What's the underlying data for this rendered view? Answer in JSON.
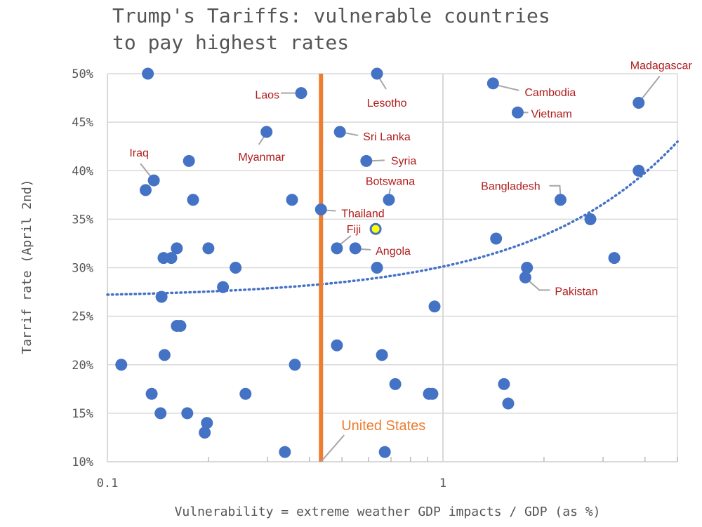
{
  "chart_data": {
    "type": "scatter",
    "title": "Trump's Tariffs: vulnerable countries to pay highest rates",
    "title_lines": [
      "Trump's Tariffs: vulnerable countries",
      "to pay highest rates"
    ],
    "xlabel": "Vulnerability = extreme weather GDP impacts / GDP (as %)",
    "ylabel": "Tarrif rate (April 2nd)",
    "x_scale": "log",
    "xlim": [
      0.1,
      5
    ],
    "ylim": [
      10,
      50
    ],
    "x_ticks": [
      "0.1",
      "1"
    ],
    "y_ticks": [
      "10%",
      "15%",
      "20%",
      "25%",
      "30%",
      "35%",
      "40%",
      "45%",
      "50%"
    ],
    "grid": true,
    "colors": {
      "points": "#4472C4",
      "highlight": "#FFFF00",
      "reference_line": "#ED7D31",
      "labels": "#B01C1C",
      "trend": "#4472C4",
      "grid": "#D9D9D9"
    },
    "reference_line": {
      "label": "United States",
      "x": 0.433
    },
    "highlight_point": {
      "x": 0.63,
      "y": 34
    },
    "trendline": {
      "type": "linear",
      "intercept": 26.9,
      "slope": 3.22
    },
    "points": [
      {
        "x": 0.132,
        "y": 50
      },
      {
        "x": 0.378,
        "y": 48,
        "label": "Laos"
      },
      {
        "x": 0.636,
        "y": 50,
        "label": "Lesotho"
      },
      {
        "x": 1.41,
        "y": 49,
        "label": "Cambodia"
      },
      {
        "x": 3.83,
        "y": 47,
        "label": "Madagascar"
      },
      {
        "x": 1.67,
        "y": 46,
        "label": "Vietnam"
      },
      {
        "x": 0.298,
        "y": 44,
        "label": "Myanmar"
      },
      {
        "x": 0.493,
        "y": 44,
        "label": "Sri Lanka"
      },
      {
        "x": 0.1375,
        "y": 39,
        "label": "Iraq"
      },
      {
        "x": 0.13,
        "y": 38
      },
      {
        "x": 0.175,
        "y": 41
      },
      {
        "x": 0.591,
        "y": 41,
        "label": "Syria"
      },
      {
        "x": 3.83,
        "y": 40
      },
      {
        "x": 0.18,
        "y": 37
      },
      {
        "x": 0.355,
        "y": 37
      },
      {
        "x": 0.69,
        "y": 37,
        "label": "Botswana"
      },
      {
        "x": 2.24,
        "y": 37,
        "label": "Bangladesh"
      },
      {
        "x": 0.433,
        "y": 36,
        "label": "Thailand"
      },
      {
        "x": 2.75,
        "y": 35
      },
      {
        "x": 1.44,
        "y": 33
      },
      {
        "x": 0.483,
        "y": 32,
        "label": "Fiji"
      },
      {
        "x": 0.548,
        "y": 32,
        "label": "Angola"
      },
      {
        "x": 0.161,
        "y": 32
      },
      {
        "x": 0.2,
        "y": 32
      },
      {
        "x": 0.147,
        "y": 31
      },
      {
        "x": 0.155,
        "y": 31
      },
      {
        "x": 3.24,
        "y": 31
      },
      {
        "x": 0.241,
        "y": 30
      },
      {
        "x": 0.636,
        "y": 30
      },
      {
        "x": 1.78,
        "y": 30
      },
      {
        "x": 1.76,
        "y": 29,
        "label": "Pakistan"
      },
      {
        "x": 0.221,
        "y": 28
      },
      {
        "x": 0.145,
        "y": 27
      },
      {
        "x": 0.944,
        "y": 26
      },
      {
        "x": 0.161,
        "y": 24
      },
      {
        "x": 0.165,
        "y": 24
      },
      {
        "x": 0.483,
        "y": 22
      },
      {
        "x": 0.148,
        "y": 21
      },
      {
        "x": 0.658,
        "y": 21
      },
      {
        "x": 0.11,
        "y": 20
      },
      {
        "x": 0.362,
        "y": 20
      },
      {
        "x": 0.1355,
        "y": 17
      },
      {
        "x": 0.258,
        "y": 17
      },
      {
        "x": 0.721,
        "y": 18
      },
      {
        "x": 0.908,
        "y": 17
      },
      {
        "x": 0.93,
        "y": 17
      },
      {
        "x": 1.52,
        "y": 18
      },
      {
        "x": 1.565,
        "y": 16
      },
      {
        "x": 0.144,
        "y": 15
      },
      {
        "x": 0.173,
        "y": 15
      },
      {
        "x": 0.198,
        "y": 14
      },
      {
        "x": 0.195,
        "y": 13
      },
      {
        "x": 0.338,
        "y": 11
      },
      {
        "x": 0.671,
        "y": 11
      }
    ]
  }
}
